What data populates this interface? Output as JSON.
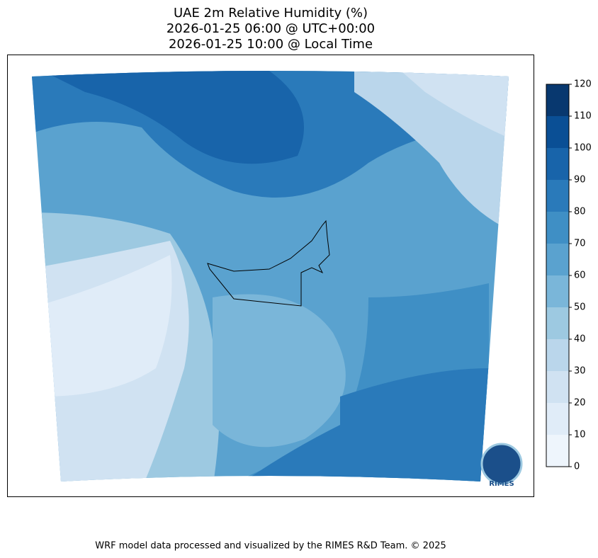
{
  "title": {
    "lines": [
      "UAE 2m Relative Humidity (%)",
      "2026-01-25 06:00 @ UTC+00:00",
      "2026-01-25 10:00 @ Local Time"
    ]
  },
  "colorbar": {
    "ticks": [
      0,
      10,
      20,
      30,
      40,
      50,
      60,
      70,
      80,
      90,
      100,
      110,
      120
    ],
    "colors": [
      "#eef5fc",
      "#e0ecf8",
      "#d0e2f2",
      "#bad6eb",
      "#9dc9e1",
      "#7ab6d9",
      "#5aa2cf",
      "#3f8fc5",
      "#2a7aba",
      "#1864aa",
      "#0a4f95",
      "#08386f"
    ]
  },
  "logo": {
    "text": "RIMES"
  },
  "footer": "WRF model data processed and visualized by the RIMES R&D Team. © 2025"
}
